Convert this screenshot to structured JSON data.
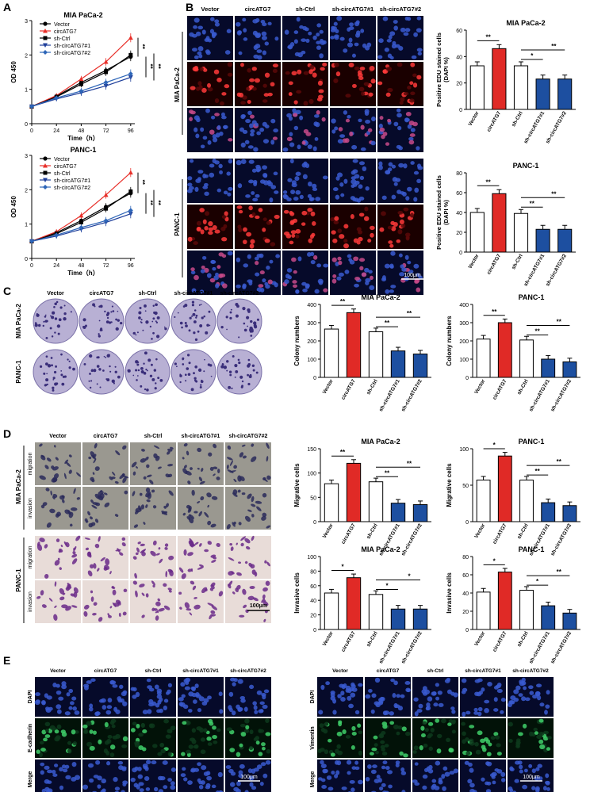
{
  "panels": {
    "A": "A",
    "B": "B",
    "C": "C",
    "D": "D",
    "E": "E"
  },
  "groups": [
    "Vector",
    "circATG7",
    "sh-Ctrl",
    "sh-circATG7#1",
    "sh-circATG7#2"
  ],
  "colors": {
    "vector": "#000000",
    "circ": "#e8302a",
    "shctrl": "#000000",
    "sh1": "#1f3f9a",
    "sh2": "#2e66b8",
    "bar_red": "#e02a26",
    "bar_blue": "#1d4fa0",
    "dapi": "#1b2f7a",
    "edu": "#b01818",
    "green": "#1e7a40"
  },
  "scale_bar": "100μm",
  "significance": {
    "double": "**",
    "single": "*"
  },
  "cell_lines": {
    "mia": "MIA PaCa-2",
    "panc": "PANC-1"
  },
  "row_labels": {
    "migration": "migration",
    "invasion": "invasion",
    "dapi": "DAPI",
    "ecad": "E-cadherin",
    "vim": "Vimentin",
    "merge": "Merge"
  },
  "chart_data": [
    {
      "id": "growth-mia",
      "type": "line",
      "title": "MIA PaCa-2",
      "xlabel": "Time（h）",
      "ylabel": "OD 450",
      "x": [
        0,
        24,
        48,
        72,
        96
      ],
      "ylim": [
        0,
        3
      ],
      "xticks": [
        0,
        24,
        48,
        72,
        96
      ],
      "yticks": [
        0,
        1,
        2,
        3
      ],
      "series": [
        {
          "name": "Vector",
          "values": [
            0.5,
            0.8,
            1.2,
            1.55,
            1.95
          ]
        },
        {
          "name": "circATG7",
          "values": [
            0.5,
            0.82,
            1.3,
            1.8,
            2.5
          ]
        },
        {
          "name": "sh-Ctrl",
          "values": [
            0.5,
            0.78,
            1.15,
            1.5,
            2.0
          ]
        },
        {
          "name": "sh-circATG7#1",
          "values": [
            0.5,
            0.72,
            0.9,
            1.1,
            1.35
          ]
        },
        {
          "name": "sh-circATG7#2",
          "values": [
            0.5,
            0.75,
            0.95,
            1.2,
            1.45
          ]
        }
      ]
    },
    {
      "id": "growth-panc",
      "type": "line",
      "title": "PANC-1",
      "xlabel": "Time（h）",
      "ylabel": "OD 450",
      "x": [
        0,
        24,
        48,
        72,
        96
      ],
      "ylim": [
        0,
        3
      ],
      "xticks": [
        0,
        24,
        48,
        72,
        96
      ],
      "yticks": [
        0,
        1,
        2,
        3
      ],
      "series": [
        {
          "name": "Vector",
          "values": [
            0.5,
            0.75,
            1.1,
            1.5,
            1.9
          ]
        },
        {
          "name": "circATG7",
          "values": [
            0.5,
            0.78,
            1.25,
            1.85,
            2.5
          ]
        },
        {
          "name": "sh-Ctrl",
          "values": [
            0.5,
            0.72,
            1.05,
            1.45,
            1.95
          ]
        },
        {
          "name": "sh-circATG7#1",
          "values": [
            0.5,
            0.65,
            0.85,
            1.05,
            1.3
          ]
        },
        {
          "name": "sh-circATG7#2",
          "values": [
            0.5,
            0.68,
            0.9,
            1.1,
            1.4
          ]
        }
      ]
    },
    {
      "id": "edu-mia",
      "type": "bar",
      "title": "MIA PaCa-2",
      "ylabel": "Positive EDU stained cells (DAPI %)",
      "ylim": [
        0,
        60
      ],
      "yticks": [
        0,
        20,
        40,
        60
      ],
      "values": [
        33,
        46,
        33,
        23,
        23
      ]
    },
    {
      "id": "edu-panc",
      "type": "bar",
      "title": "PANC-1",
      "ylabel": "Positive EDU stained cells (DAPI %)",
      "ylim": [
        0,
        80
      ],
      "yticks": [
        0,
        20,
        40,
        60,
        80
      ],
      "values": [
        40,
        59,
        39,
        23,
        23
      ]
    },
    {
      "id": "col-mia",
      "type": "bar",
      "title": "MIA PaCa-2",
      "ylabel": "Colony numbers",
      "ylim": [
        0,
        400
      ],
      "yticks": [
        0,
        100,
        200,
        300,
        400
      ],
      "values": [
        265,
        355,
        250,
        145,
        128
      ]
    },
    {
      "id": "col-panc",
      "type": "bar",
      "title": "PANC-1",
      "ylabel": "Colony numbers",
      "ylim": [
        0,
        400
      ],
      "yticks": [
        0,
        100,
        200,
        300,
        400
      ],
      "values": [
        210,
        300,
        205,
        100,
        85
      ]
    },
    {
      "id": "mig-mia",
      "type": "bar",
      "title": "MIA PaCa-2",
      "ylabel": "Migrative cells",
      "ylim": [
        0,
        150
      ],
      "yticks": [
        0,
        50,
        100,
        150
      ],
      "values": [
        78,
        120,
        82,
        38,
        35
      ]
    },
    {
      "id": "mig-panc",
      "type": "bar",
      "title": "PANC-1",
      "ylabel": "Migrative cells",
      "ylim": [
        0,
        100
      ],
      "yticks": [
        0,
        50,
        100
      ],
      "values": [
        57,
        90,
        57,
        26,
        22
      ]
    },
    {
      "id": "inv-mia",
      "type": "bar",
      "title": "MIA PaCa-2",
      "ylabel": "Invasive cells",
      "ylim": [
        0,
        100
      ],
      "yticks": [
        0,
        20,
        40,
        60,
        80,
        100
      ],
      "values": [
        50,
        71,
        48,
        28,
        28
      ]
    },
    {
      "id": "inv-panc",
      "type": "bar",
      "title": "PANC-1",
      "ylabel": "Invasive cells",
      "ylim": [
        0,
        80
      ],
      "yticks": [
        0,
        20,
        40,
        60,
        80
      ],
      "values": [
        41,
        63,
        43,
        26,
        18
      ]
    }
  ]
}
